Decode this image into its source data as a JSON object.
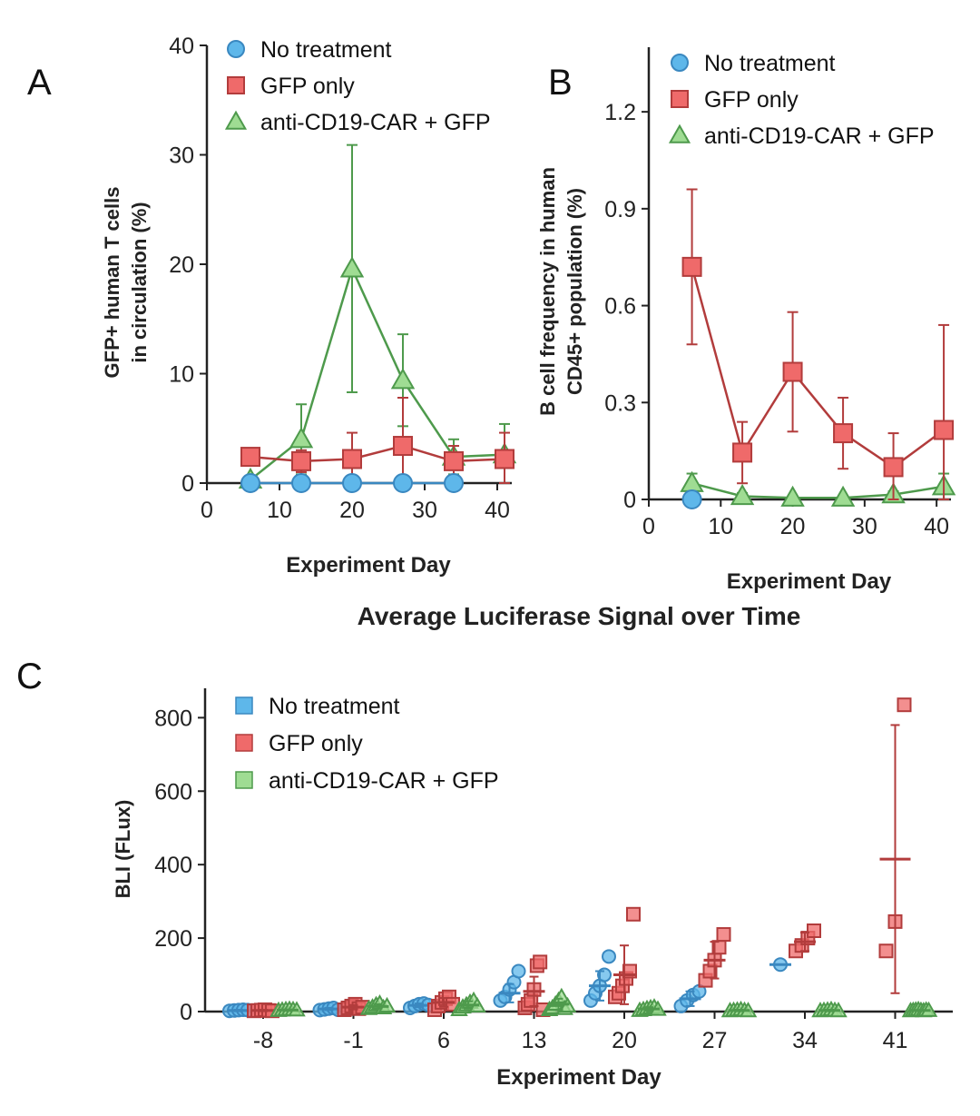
{
  "colors": {
    "blue_fill": "#5eb7ea",
    "blue_line": "#3a88c0",
    "red_fill": "#ef6a6a",
    "red_line": "#b23c3c",
    "green_fill": "#9fdc93",
    "green_line": "#4e9a4c",
    "axis": "#222222"
  },
  "chart_data": [
    {
      "panel": "A",
      "type": "line",
      "title": "",
      "xlabel": "Experiment Day",
      "ylabel": [
        "GFP+ human T cells",
        "in circulation (%)"
      ],
      "xlim": [
        0,
        42
      ],
      "ylim": [
        0,
        40
      ],
      "xticks": [
        0,
        10,
        20,
        30,
        40
      ],
      "yticks": [
        0,
        10,
        20,
        30,
        40
      ],
      "legend": [
        "No treatment",
        "GFP only",
        "anti-CD19-CAR + GFP"
      ],
      "series": [
        {
          "name": "No treatment",
          "marker": "circle",
          "color": "blue",
          "points": [
            {
              "x": 6,
              "y": 0,
              "err": 0
            },
            {
              "x": 13,
              "y": 0,
              "err": 0
            },
            {
              "x": 20,
              "y": 0,
              "err": 0
            },
            {
              "x": 27,
              "y": 0,
              "err": 0
            },
            {
              "x": 34,
              "y": 0,
              "err": 0
            }
          ]
        },
        {
          "name": "GFP only",
          "marker": "square",
          "color": "red",
          "points": [
            {
              "x": 6,
              "y": 2.4,
              "err": 0.6
            },
            {
              "x": 13,
              "y": 2.0,
              "err": 1.0
            },
            {
              "x": 20,
              "y": 2.2,
              "err": 2.4
            },
            {
              "x": 27,
              "y": 3.4,
              "err": 4.4
            },
            {
              "x": 34,
              "y": 2.0,
              "err": 1.4
            },
            {
              "x": 41,
              "y": 2.2,
              "err": 2.4
            }
          ]
        },
        {
          "name": "anti-CD19-CAR + GFP",
          "marker": "triangle",
          "color": "green",
          "points": [
            {
              "x": 6,
              "y": 0.3,
              "err": 0.3
            },
            {
              "x": 13,
              "y": 4.0,
              "err": 3.2
            },
            {
              "x": 20,
              "y": 19.6,
              "err": 11.3
            },
            {
              "x": 27,
              "y": 9.4,
              "err": 4.2
            },
            {
              "x": 34,
              "y": 2.4,
              "err": 1.6
            },
            {
              "x": 41,
              "y": 2.6,
              "err": 2.8
            }
          ]
        }
      ]
    },
    {
      "panel": "B",
      "type": "line",
      "title": "",
      "xlabel": "Experiment Day",
      "ylabel": [
        "B cell frequency in human",
        "CD45+ population (%)"
      ],
      "xlim": [
        0,
        42
      ],
      "ylim": [
        0,
        1.4
      ],
      "xticks": [
        0,
        10,
        20,
        30,
        40
      ],
      "yticks": [
        0,
        0.3,
        0.6,
        0.9,
        1.2
      ],
      "ytick_labels": [
        "0",
        "0.3",
        "0.6",
        "0.9",
        "1.2"
      ],
      "legend": [
        "No treatment",
        "GFP only",
        "anti-CD19-CAR + GFP"
      ],
      "series": [
        {
          "name": "No treatment",
          "marker": "circle",
          "color": "blue",
          "points": [
            {
              "x": 6,
              "y": 0,
              "err": 0
            }
          ]
        },
        {
          "name": "GFP only",
          "marker": "square",
          "color": "red",
          "points": [
            {
              "x": 6,
              "y": 0.72,
              "err": 0.24
            },
            {
              "x": 13,
              "y": 0.145,
              "err": 0.095
            },
            {
              "x": 20,
              "y": 0.395,
              "err": 0.185
            },
            {
              "x": 27,
              "y": 0.205,
              "err": 0.11
            },
            {
              "x": 34,
              "y": 0.1,
              "err": 0.105
            },
            {
              "x": 41,
              "y": 0.215,
              "err": 0.325
            }
          ]
        },
        {
          "name": "anti-CD19-CAR + GFP",
          "marker": "triangle",
          "color": "green",
          "points": [
            {
              "x": 6,
              "y": 0.05,
              "err": 0.03
            },
            {
              "x": 13,
              "y": 0.01,
              "err": 0.01
            },
            {
              "x": 20,
              "y": 0.005,
              "err": 0.005
            },
            {
              "x": 27,
              "y": 0.005,
              "err": 0.005
            },
            {
              "x": 34,
              "y": 0.015,
              "err": 0.01
            },
            {
              "x": 41,
              "y": 0.04,
              "err": 0.04
            }
          ]
        }
      ]
    },
    {
      "panel": "C",
      "type": "scatter",
      "title": "Average Luciferase Signal over Time",
      "xlabel": "Experiment Day",
      "ylabel": "BLI (FLux)",
      "ylim": [
        0,
        880
      ],
      "yticks": [
        0,
        200,
        400,
        600,
        800
      ],
      "categories": [
        "-8",
        "-1",
        "6",
        "13",
        "20",
        "27",
        "34",
        "41"
      ],
      "legend": [
        "No treatment",
        "GFP only",
        "anti-CD19-CAR + GFP"
      ],
      "groups": [
        {
          "day": "-8",
          "no_treatment": {
            "values": [
              2,
              3,
              4,
              5,
              4
            ],
            "mean": 3,
            "err": 2
          },
          "gfp_only": {
            "values": [
              2,
              3,
              4,
              5,
              3,
              2
            ],
            "mean": 3,
            "err": 2
          },
          "car_gfp": {
            "values": [
              3,
              4,
              5,
              6,
              5,
              4
            ],
            "mean": 4,
            "err": 2
          }
        },
        {
          "day": "-1",
          "no_treatment": {
            "values": [
              4,
              6,
              8,
              10,
              5
            ],
            "mean": 7,
            "err": 3
          },
          "gfp_only": {
            "values": [
              5,
              10,
              15,
              20,
              8,
              12
            ],
            "mean": 12,
            "err": 6
          },
          "car_gfp": {
            "values": [
              8,
              12,
              18,
              22,
              10,
              15
            ],
            "mean": 14,
            "err": 6
          }
        },
        {
          "day": "6",
          "no_treatment": {
            "values": [
              10,
              15,
              20,
              22,
              18
            ],
            "mean": 17,
            "err": 5
          },
          "gfp_only": {
            "values": [
              5,
              15,
              25,
              35,
              40,
              20
            ],
            "mean": 25,
            "err": 12
          },
          "car_gfp": {
            "values": [
              5,
              12,
              18,
              25,
              30,
              15
            ],
            "mean": 18,
            "err": 10
          }
        },
        {
          "day": "13",
          "no_treatment": {
            "values": [
              30,
              40,
              60,
              80,
              110
            ],
            "mean": 50,
            "err": 25
          },
          "gfp_only": {
            "values": [
              10,
              20,
              30,
              60,
              125,
              135,
              5
            ],
            "mean": 55,
            "err": 40
          },
          "car_gfp": {
            "values": [
              5,
              10,
              20,
              30,
              40,
              8,
              15
            ],
            "mean": 20,
            "err": 15
          }
        },
        {
          "day": "20",
          "no_treatment": {
            "values": [
              30,
              50,
              70,
              100,
              150
            ],
            "mean": 70,
            "err": 40
          },
          "gfp_only": {
            "values": [
              40,
              50,
              70,
              90,
              110,
              265
            ],
            "mean": 100,
            "err": 80
          },
          "car_gfp": {
            "values": [
              3,
              5,
              8,
              10,
              12,
              6
            ],
            "mean": 7,
            "err": 5
          }
        },
        {
          "day": "27",
          "no_treatment": {
            "values": [
              15,
              30,
              45,
              55
            ],
            "mean": 35,
            "err": 20
          },
          "gfp_only": {
            "values": [
              85,
              110,
              140,
              175,
              210
            ],
            "mean": 140,
            "err": 50
          },
          "car_gfp": {
            "values": [
              2,
              3,
              4,
              5,
              3,
              2
            ],
            "mean": 3,
            "err": 2
          }
        },
        {
          "day": "34",
          "no_treatment": {
            "values": [
              128
            ],
            "mean": 128,
            "err": 0
          },
          "gfp_only": {
            "values": [
              165,
              180,
              200,
              220
            ],
            "mean": 190,
            "err": 25
          },
          "car_gfp": {
            "values": [
              2,
              3,
              4,
              5,
              3,
              2
            ],
            "mean": 3,
            "err": 2
          }
        },
        {
          "day": "41",
          "no_treatment": {
            "values": [],
            "mean": null,
            "err": 0
          },
          "gfp_only": {
            "values": [
              165,
              245,
              835
            ],
            "mean": 415,
            "err": 365
          },
          "car_gfp": {
            "values": [
              2,
              3,
              4,
              5,
              3,
              2,
              4,
              3
            ],
            "mean": 3,
            "err": 1
          }
        }
      ]
    }
  ],
  "panel_labels": [
    "A",
    "B",
    "C"
  ]
}
